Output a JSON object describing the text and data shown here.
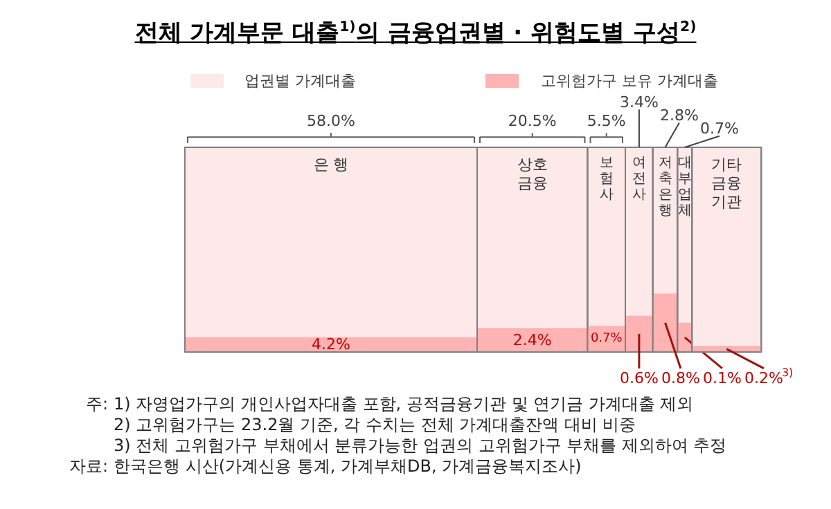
{
  "chart_data": {
    "type": "other",
    "title": "전체 가계부문 대출$^{1)}$의 금융업권별 · 위험도별 구성$^{2)}$",
    "categories": [
      "은 행",
      "상호금융",
      "보험사",
      "여전사",
      "저축은행",
      "대부업체",
      "기타금융기관"
    ],
    "series": [
      {
        "name": "업권별 가계대출",
        "color": "#fde9e9",
        "values": [
          58.0,
          20.5,
          5.5,
          3.4,
          2.8,
          0.7,
          null
        ],
        "value_labels": [
          "58.0%",
          "20.5%",
          "5.5%",
          "3.4%",
          "2.8%",
          "0.7%",
          null
        ]
      },
      {
        "name": "고위험가구 보유 가계대출",
        "color": "#ffb3b3",
        "values": [
          4.2,
          2.4,
          0.7,
          0.6,
          0.8,
          0.1,
          0.2
        ],
        "value_labels": [
          "4.2%",
          "2.4%",
          "0.7%",
          "0.6%",
          "0.8%",
          "0.1%",
          "0.2%$^{3)}$"
        ]
      }
    ],
    "legend": "top",
    "annotations": [
      "주: 1) 자영업가구의 개인사업자대출 포함, 공적금융기관 및 연기금 가계대출 제외",
      "2) 고위험가구는 23.2월 기준, 각 수치는 전체 가계대출잔액 대비 비중",
      "3) 전체 고위험가구 부채에서 분류가능한 업권의 고위험가구 부채를 제외하여 추정",
      "자료: 한국은행 시산(가계신용 통계, 가계부채DB, 가계금융복지조사)"
    ]
  }
}
